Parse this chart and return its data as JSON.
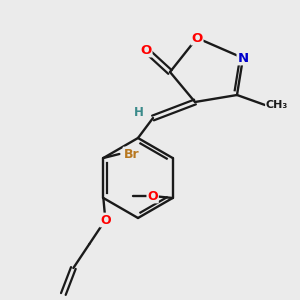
{
  "bg_color": "#ebebeb",
  "bond_color": "#1a1a1a",
  "atom_colors": {
    "O": "#ff0000",
    "N": "#0000cc",
    "Br": "#b87820",
    "H": "#3a8a8a",
    "C": "#1a1a1a"
  },
  "figsize": [
    3.0,
    3.0
  ],
  "dpi": 100
}
